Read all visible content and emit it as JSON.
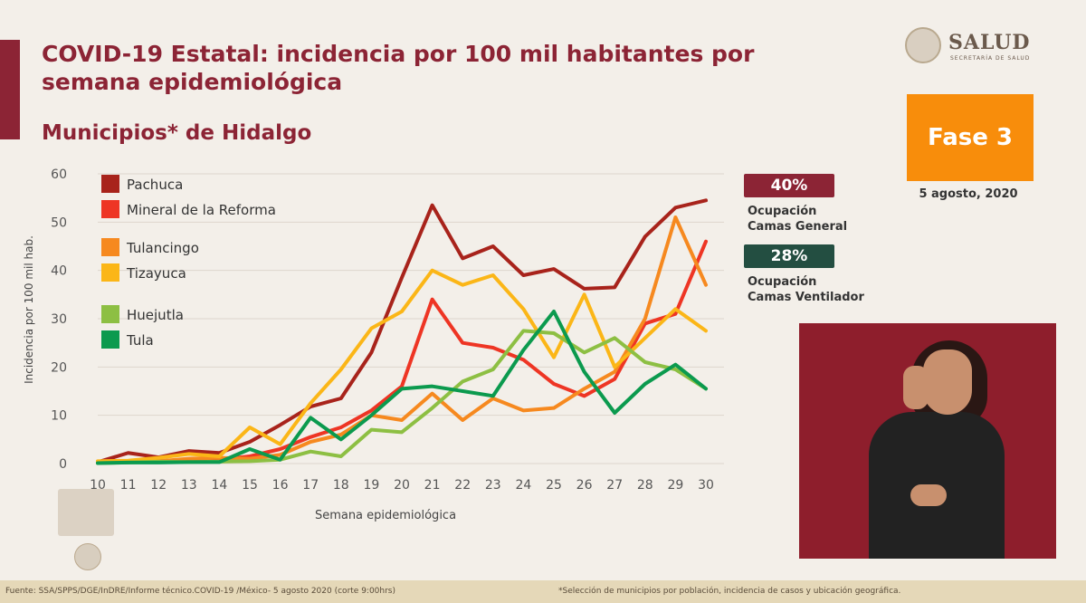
{
  "header": {
    "title": "COVID-19 Estatal: incidencia por 100 mil habitantes por semana epidemiológica",
    "subtitle": "Municipios* de Hidalgo"
  },
  "logo": {
    "name": "SALUD",
    "sub": "SECRETARÍA DE SALUD"
  },
  "status": {
    "phase": "Fase 3",
    "date": "5 agosto, 2020",
    "occupancy_general": {
      "value": "40%",
      "line1": "Ocupación",
      "line2": "Camas General"
    },
    "occupancy_ventilator": {
      "value": "28%",
      "line1": "Ocupación",
      "line2": "Camas Ventilador"
    }
  },
  "footer": {
    "source": "Fuente: SSA/SPPS/DGE/InDRE/Informe técnico.COVID-19 /México- 5 agosto 2020 (corte 9:00hrs)",
    "note": "*Selección de municipios por población, incidencia de casos y ubicación geográfica."
  },
  "colors": {
    "accent": "#8c2435",
    "phase": "#f88d0b",
    "ventilator": "#234e41"
  },
  "chart_data": {
    "type": "line",
    "title": "",
    "xlabel": "Semana epidemiológica",
    "ylabel": "Incidencia por 100 mil hab.",
    "ylim": [
      0,
      60
    ],
    "yticks": [
      0,
      10,
      20,
      30,
      40,
      50,
      60
    ],
    "grid": true,
    "legend": "top-left",
    "x": [
      10,
      11,
      12,
      13,
      14,
      15,
      16,
      17,
      18,
      19,
      20,
      21,
      22,
      23,
      24,
      25,
      26,
      27,
      28,
      29,
      30
    ],
    "series": [
      {
        "name": "Pachuca",
        "color": "#a8231b",
        "values": [
          0.3,
          2.2,
          1.3,
          2.6,
          2.2,
          4.5,
          8.0,
          11.8,
          13.5,
          23.0,
          38.5,
          53.5,
          42.5,
          45.0,
          39.0,
          40.3,
          36.2,
          36.5,
          47.0,
          53.0,
          54.5
        ]
      },
      {
        "name": "Mineral de la Reforma",
        "color": "#ee3524",
        "values": [
          0.2,
          0.3,
          0.6,
          0.5,
          0.8,
          1.5,
          3.0,
          5.5,
          7.5,
          11.0,
          16.0,
          34.0,
          25.0,
          24.0,
          21.5,
          16.5,
          14.0,
          17.5,
          29.0,
          31.0,
          46.0
        ]
      },
      {
        "name": "Tulancingo",
        "color": "#f6891f",
        "values": [
          0.2,
          0.3,
          0.5,
          1.0,
          1.2,
          1.0,
          1.8,
          4.5,
          6.0,
          10.0,
          9.0,
          14.5,
          9.0,
          13.5,
          11.0,
          11.5,
          15.5,
          19.0,
          30.0,
          51.0,
          37.0
        ]
      },
      {
        "name": "Tizayuca",
        "color": "#fbb617",
        "values": [
          0.5,
          0.6,
          1.2,
          2.0,
          1.5,
          7.5,
          4.0,
          12.5,
          19.5,
          28.0,
          31.5,
          40.0,
          37.0,
          39.0,
          32.0,
          22.0,
          35.0,
          20.0,
          26.0,
          32.0,
          27.5
        ]
      },
      {
        "name": "Huejutla",
        "color": "#8dbf43",
        "values": [
          0.1,
          0.2,
          0.4,
          0.3,
          0.4,
          0.5,
          0.8,
          2.5,
          1.5,
          7.0,
          6.5,
          11.5,
          17.0,
          19.5,
          27.5,
          27.0,
          23.0,
          26.0,
          21.0,
          19.5,
          15.5
        ]
      },
      {
        "name": "Tula",
        "color": "#0b9a4e",
        "values": [
          0.1,
          0.2,
          0.2,
          0.3,
          0.3,
          3.0,
          0.8,
          9.5,
          5.0,
          10.0,
          15.5,
          16.0,
          15.0,
          14.0,
          23.5,
          31.5,
          19.0,
          10.5,
          16.5,
          20.5,
          15.5
        ]
      }
    ]
  }
}
